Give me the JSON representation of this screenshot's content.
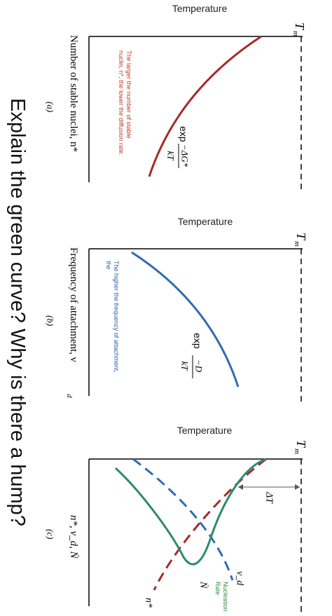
{
  "question": "Explain the green curve? Why is there a hump?",
  "panel_a": {
    "axis_top": "Temperature",
    "tm": "T",
    "tm_sub": "m",
    "axis_left": "Number of stable nuclei, n*",
    "tag": "(a)",
    "note": [
      "The larger the number of stable",
      "nuclei, n*, the lower the diffusion rate."
    ],
    "formula": {
      "exp": "exp",
      "num": "−ΔG*",
      "den": "kT"
    }
  },
  "panel_b": {
    "axis_top": "Temperature",
    "tm": "T",
    "tm_sub": "m",
    "axis_left": "Frequency of attachment, ν",
    "axis_left_sub": "d",
    "tag": "(b)",
    "note": [
      "The higher the frequency of attachment,",
      "the"
    ],
    "formula": {
      "exp": "exp",
      "num": "−D",
      "den": "kT"
    }
  },
  "panel_c": {
    "axis_top": "Temperature",
    "tm": "T",
    "tm_sub": "m",
    "axis_left": "n*, ν_d, Ṅ",
    "tag": "(c)",
    "delta": "ΔT",
    "label_n": "n*",
    "label_N": "Ṅ",
    "label_v": "ν_d",
    "rate": [
      "Nucleation",
      "Rate"
    ]
  }
}
